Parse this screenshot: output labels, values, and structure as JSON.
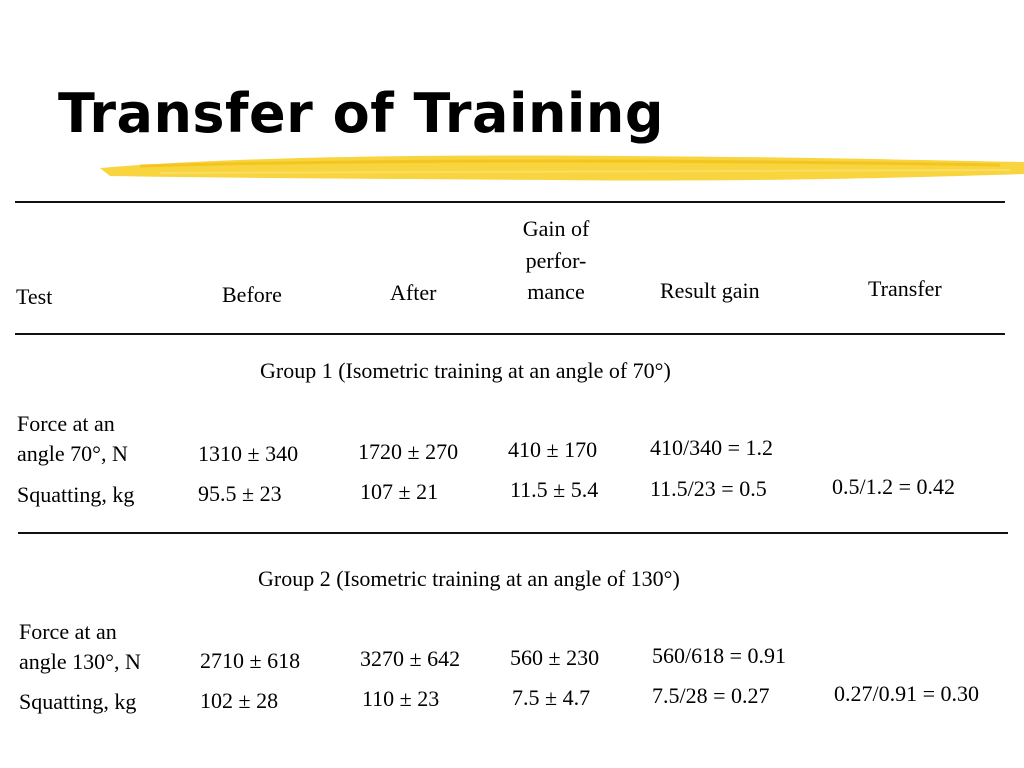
{
  "slide": {
    "title": "Transfer of Training",
    "highlight_color": "#f7cf2a"
  },
  "table": {
    "headers": {
      "test": "Test",
      "before": "Before",
      "after": "After",
      "gain_line1": "Gain of",
      "gain_line2": "perfor-",
      "gain_line3": "mance",
      "result": "Result gain",
      "transfer": "Transfer"
    },
    "group1": {
      "title": "Group 1 (Isometric training at an angle of 70°)",
      "row1": {
        "test_line1": "Force at an",
        "test_line2": "angle 70°, N",
        "before": "1310 ± 340",
        "after": "1720 ± 270",
        "gain": "410 ± 170",
        "result": "410/340 = 1.2"
      },
      "row2": {
        "test": "Squatting, kg",
        "before": "95.5 ± 23",
        "after": "107 ± 21",
        "gain": "11.5 ± 5.4",
        "result": "11.5/23 = 0.5",
        "transfer": "0.5/1.2 = 0.42"
      }
    },
    "group2": {
      "title": "Group 2 (Isometric training at an angle of 130°)",
      "row1": {
        "test_line1": "Force at an",
        "test_line2": "angle 130°, N",
        "before": "2710 ± 618",
        "after": "3270 ± 642",
        "gain": "560 ± 230",
        "result": "560/618 = 0.91"
      },
      "row2": {
        "test": "Squatting, kg",
        "before": "102 ± 28",
        "after": "110 ± 23",
        "gain": "7.5 ± 4.7",
        "result": "7.5/28 = 0.27",
        "transfer": "0.27/0.91 = 0.30"
      }
    }
  }
}
